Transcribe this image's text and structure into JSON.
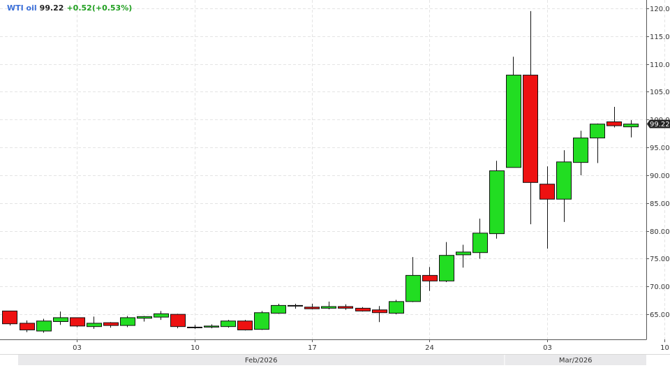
{
  "legend": {
    "symbol": "WTI oil",
    "last": "99.22",
    "change": "+0.52(+0.53%)"
  },
  "colors": {
    "up": "#22dd22",
    "down": "#ee1111",
    "grid": "#e4e4e4",
    "price_tag_bg": "#222222",
    "legend_symbol": "#3b6fd8",
    "legend_change": "#22a022"
  },
  "chart_data": {
    "type": "candlestick",
    "title": "",
    "xlabel": "",
    "ylabel": "",
    "ylim": [
      60.5,
      121.5
    ],
    "y_ticks": [
      "65.00",
      "70.00",
      "75.00",
      "80.00",
      "85.00",
      "90.00",
      "95.00",
      "100.00",
      "105.00",
      "110.00",
      "115.00",
      "120.00"
    ],
    "x_tick_labels": [
      "03",
      "10",
      "17",
      "24",
      "03",
      "10"
    ],
    "x_tick_days": [
      3,
      10,
      17,
      24,
      31,
      38
    ],
    "month_labels": [
      "Feb/2026",
      "Mar/2026"
    ],
    "month_start_days": [
      -0.5,
      28.5
    ],
    "current_price": "99.22",
    "candles": [
      {
        "day": -1,
        "o": 65.6,
        "h": 65.6,
        "l": 63.0,
        "c": 63.3
      },
      {
        "day": 0,
        "o": 63.4,
        "h": 63.9,
        "l": 61.8,
        "c": 62.2
      },
      {
        "day": 1,
        "o": 62.0,
        "h": 64.2,
        "l": 61.7,
        "c": 63.8
      },
      {
        "day": 2,
        "o": 63.7,
        "h": 65.5,
        "l": 63.1,
        "c": 64.4
      },
      {
        "day": 3,
        "o": 64.4,
        "h": 64.4,
        "l": 62.7,
        "c": 62.9
      },
      {
        "day": 4,
        "o": 62.8,
        "h": 64.6,
        "l": 62.4,
        "c": 63.4
      },
      {
        "day": 5,
        "o": 63.5,
        "h": 63.6,
        "l": 62.6,
        "c": 63.0
      },
      {
        "day": 6,
        "o": 63.0,
        "h": 64.7,
        "l": 62.7,
        "c": 64.4
      },
      {
        "day": 7,
        "o": 64.3,
        "h": 64.7,
        "l": 63.7,
        "c": 64.6
      },
      {
        "day": 8,
        "o": 64.5,
        "h": 65.6,
        "l": 64.0,
        "c": 65.1
      },
      {
        "day": 9,
        "o": 65.0,
        "h": 65.1,
        "l": 62.5,
        "c": 62.8
      },
      {
        "day": 10,
        "o": 62.7,
        "h": 63.1,
        "l": 62.4,
        "c": 62.6
      },
      {
        "day": 11,
        "o": 62.7,
        "h": 63.2,
        "l": 62.5,
        "c": 62.9
      },
      {
        "day": 12,
        "o": 62.8,
        "h": 64.0,
        "l": 62.6,
        "c": 63.8
      },
      {
        "day": 13,
        "o": 63.8,
        "h": 64.0,
        "l": 62.1,
        "c": 62.2
      },
      {
        "day": 14,
        "o": 62.3,
        "h": 65.6,
        "l": 62.2,
        "c": 65.3
      },
      {
        "day": 15,
        "o": 65.2,
        "h": 66.9,
        "l": 65.1,
        "c": 66.6
      },
      {
        "day": 16,
        "o": 66.5,
        "h": 66.9,
        "l": 66.0,
        "c": 66.6
      },
      {
        "day": 17,
        "o": 66.3,
        "h": 66.9,
        "l": 65.9,
        "c": 66.0
      },
      {
        "day": 18,
        "o": 66.1,
        "h": 67.3,
        "l": 65.9,
        "c": 66.4
      },
      {
        "day": 19,
        "o": 66.4,
        "h": 66.8,
        "l": 65.8,
        "c": 66.1
      },
      {
        "day": 20,
        "o": 66.1,
        "h": 66.3,
        "l": 65.5,
        "c": 65.6
      },
      {
        "day": 21,
        "o": 65.8,
        "h": 66.5,
        "l": 63.6,
        "c": 65.3
      },
      {
        "day": 22,
        "o": 65.2,
        "h": 67.6,
        "l": 65.0,
        "c": 67.3
      },
      {
        "day": 23,
        "o": 67.3,
        "h": 75.3,
        "l": 67.2,
        "c": 72.0
      },
      {
        "day": 24,
        "o": 72.0,
        "h": 73.5,
        "l": 69.2,
        "c": 71.0
      },
      {
        "day": 25,
        "o": 71.0,
        "h": 78.0,
        "l": 70.8,
        "c": 75.6
      },
      {
        "day": 26,
        "o": 75.7,
        "h": 77.5,
        "l": 73.4,
        "c": 76.2
      },
      {
        "day": 27,
        "o": 76.1,
        "h": 82.2,
        "l": 75.0,
        "c": 79.6
      },
      {
        "day": 28,
        "o": 79.5,
        "h": 92.6,
        "l": 78.6,
        "c": 90.8
      },
      {
        "day": 29,
        "o": 91.4,
        "h": 111.3,
        "l": 91.4,
        "c": 108.0
      },
      {
        "day": 30,
        "o": 108.0,
        "h": 119.5,
        "l": 81.2,
        "c": 88.7
      },
      {
        "day": 31,
        "o": 88.4,
        "h": 91.6,
        "l": 76.8,
        "c": 85.7
      },
      {
        "day": 32,
        "o": 85.7,
        "h": 94.5,
        "l": 81.6,
        "c": 92.4
      },
      {
        "day": 33,
        "o": 92.3,
        "h": 98.0,
        "l": 90.0,
        "c": 96.7
      },
      {
        "day": 34,
        "o": 96.7,
        "h": 99.3,
        "l": 92.2,
        "c": 99.2
      },
      {
        "day": 35,
        "o": 99.6,
        "h": 102.3,
        "l": 98.6,
        "c": 98.9
      },
      {
        "day": 36,
        "o": 98.7,
        "h": 99.9,
        "l": 96.8,
        "c": 99.2
      }
    ]
  }
}
